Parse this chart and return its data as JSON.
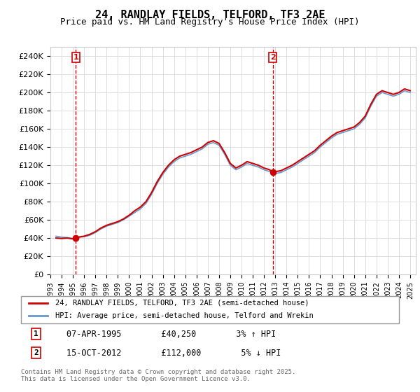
{
  "title": "24, RANDLAY FIELDS, TELFORD, TF3 2AE",
  "subtitle": "Price paid vs. HM Land Registry's House Price Index (HPI)",
  "ylabel": "",
  "ylim": [
    0,
    250000
  ],
  "yticks": [
    0,
    20000,
    40000,
    60000,
    80000,
    100000,
    120000,
    140000,
    160000,
    180000,
    200000,
    220000,
    240000
  ],
  "ytick_labels": [
    "£0",
    "£20K",
    "£40K",
    "£60K",
    "£80K",
    "£100K",
    "£120K",
    "£140K",
    "£160K",
    "£180K",
    "£200K",
    "£220K",
    "£240K"
  ],
  "price_paid_color": "#cc0000",
  "hpi_color": "#6699cc",
  "sale1_date": 1995.27,
  "sale1_price": 40250,
  "sale2_date": 2012.79,
  "sale2_price": 112000,
  "legend_label1": "24, RANDLAY FIELDS, TELFORD, TF3 2AE (semi-detached house)",
  "legend_label2": "HPI: Average price, semi-detached house, Telford and Wrekin",
  "annotation1_label": "1",
  "annotation2_label": "2",
  "annotation1_info": "07-APR-1995        £40,250        3% ↑ HPI",
  "annotation2_info": "15-OCT-2012        £112,000        5% ↓ HPI",
  "copyright_text": "Contains HM Land Registry data © Crown copyright and database right 2025.\nThis data is licensed under the Open Government Licence v3.0.",
  "background_color": "#ffffff",
  "grid_color": "#dddddd",
  "hpi_data": [
    [
      1993.5,
      42000
    ],
    [
      1994.0,
      41000
    ],
    [
      1994.5,
      40500
    ],
    [
      1995.0,
      39500
    ],
    [
      1995.27,
      40250
    ],
    [
      1995.5,
      40800
    ],
    [
      1996.0,
      41500
    ],
    [
      1996.5,
      43000
    ],
    [
      1997.0,
      46000
    ],
    [
      1997.5,
      50000
    ],
    [
      1998.0,
      53000
    ],
    [
      1998.5,
      55000
    ],
    [
      1999.0,
      57000
    ],
    [
      1999.5,
      60000
    ],
    [
      2000.0,
      64000
    ],
    [
      2000.5,
      68000
    ],
    [
      2001.0,
      72000
    ],
    [
      2001.5,
      78000
    ],
    [
      2002.0,
      88000
    ],
    [
      2002.5,
      100000
    ],
    [
      2003.0,
      110000
    ],
    [
      2003.5,
      118000
    ],
    [
      2004.0,
      124000
    ],
    [
      2004.5,
      128000
    ],
    [
      2005.0,
      130000
    ],
    [
      2005.5,
      132000
    ],
    [
      2006.0,
      135000
    ],
    [
      2006.5,
      138000
    ],
    [
      2007.0,
      143000
    ],
    [
      2007.5,
      145000
    ],
    [
      2008.0,
      142000
    ],
    [
      2008.5,
      132000
    ],
    [
      2009.0,
      120000
    ],
    [
      2009.5,
      115000
    ],
    [
      2010.0,
      118000
    ],
    [
      2010.5,
      122000
    ],
    [
      2011.0,
      120000
    ],
    [
      2011.5,
      118000
    ],
    [
      2012.0,
      115000
    ],
    [
      2012.5,
      113000
    ],
    [
      2012.79,
      112000
    ],
    [
      2013.0,
      111000
    ],
    [
      2013.5,
      112000
    ],
    [
      2014.0,
      115000
    ],
    [
      2014.5,
      118000
    ],
    [
      2015.0,
      122000
    ],
    [
      2015.5,
      126000
    ],
    [
      2016.0,
      130000
    ],
    [
      2016.5,
      134000
    ],
    [
      2017.0,
      140000
    ],
    [
      2017.5,
      145000
    ],
    [
      2018.0,
      150000
    ],
    [
      2018.5,
      154000
    ],
    [
      2019.0,
      156000
    ],
    [
      2019.5,
      158000
    ],
    [
      2020.0,
      160000
    ],
    [
      2020.5,
      165000
    ],
    [
      2021.0,
      172000
    ],
    [
      2021.5,
      185000
    ],
    [
      2022.0,
      196000
    ],
    [
      2022.5,
      200000
    ],
    [
      2023.0,
      198000
    ],
    [
      2023.5,
      196000
    ],
    [
      2024.0,
      198000
    ],
    [
      2024.5,
      202000
    ],
    [
      2025.0,
      200000
    ]
  ],
  "price_paid_data": [
    [
      1993.5,
      40000
    ],
    [
      1994.0,
      39500
    ],
    [
      1994.5,
      40000
    ],
    [
      1995.0,
      39000
    ],
    [
      1995.27,
      40250
    ],
    [
      1995.5,
      41000
    ],
    [
      1996.0,
      42000
    ],
    [
      1996.5,
      44000
    ],
    [
      1997.0,
      47000
    ],
    [
      1997.5,
      51000
    ],
    [
      1998.0,
      54000
    ],
    [
      1998.5,
      56000
    ],
    [
      1999.0,
      58000
    ],
    [
      1999.5,
      61000
    ],
    [
      2000.0,
      65000
    ],
    [
      2000.5,
      70000
    ],
    [
      2001.0,
      74000
    ],
    [
      2001.5,
      80000
    ],
    [
      2002.0,
      90000
    ],
    [
      2002.5,
      102000
    ],
    [
      2003.0,
      112000
    ],
    [
      2003.5,
      120000
    ],
    [
      2004.0,
      126000
    ],
    [
      2004.5,
      130000
    ],
    [
      2005.0,
      132000
    ],
    [
      2005.5,
      134000
    ],
    [
      2006.0,
      137000
    ],
    [
      2006.5,
      140000
    ],
    [
      2007.0,
      145000
    ],
    [
      2007.5,
      147000
    ],
    [
      2008.0,
      144000
    ],
    [
      2008.5,
      134000
    ],
    [
      2009.0,
      122000
    ],
    [
      2009.5,
      117000
    ],
    [
      2010.0,
      120000
    ],
    [
      2010.5,
      124000
    ],
    [
      2011.0,
      122000
    ],
    [
      2011.5,
      120000
    ],
    [
      2012.0,
      117000
    ],
    [
      2012.5,
      115000
    ],
    [
      2012.79,
      112000
    ],
    [
      2013.0,
      113000
    ],
    [
      2013.5,
      114000
    ],
    [
      2014.0,
      117000
    ],
    [
      2014.5,
      120000
    ],
    [
      2015.0,
      124000
    ],
    [
      2015.5,
      128000
    ],
    [
      2016.0,
      132000
    ],
    [
      2016.5,
      136000
    ],
    [
      2017.0,
      142000
    ],
    [
      2017.5,
      147000
    ],
    [
      2018.0,
      152000
    ],
    [
      2018.5,
      156000
    ],
    [
      2019.0,
      158000
    ],
    [
      2019.5,
      160000
    ],
    [
      2020.0,
      162000
    ],
    [
      2020.5,
      167000
    ],
    [
      2021.0,
      174000
    ],
    [
      2021.5,
      187000
    ],
    [
      2022.0,
      198000
    ],
    [
      2022.5,
      202000
    ],
    [
      2023.0,
      200000
    ],
    [
      2023.5,
      198000
    ],
    [
      2024.0,
      200000
    ],
    [
      2024.5,
      204000
    ],
    [
      2025.0,
      202000
    ]
  ],
  "xmin": 1993.0,
  "xmax": 2025.5,
  "xticks": [
    1993,
    1994,
    1995,
    1996,
    1997,
    1998,
    1999,
    2000,
    2001,
    2002,
    2003,
    2004,
    2005,
    2006,
    2007,
    2008,
    2009,
    2010,
    2011,
    2012,
    2013,
    2014,
    2015,
    2016,
    2017,
    2018,
    2019,
    2020,
    2021,
    2022,
    2023,
    2024,
    2025
  ]
}
